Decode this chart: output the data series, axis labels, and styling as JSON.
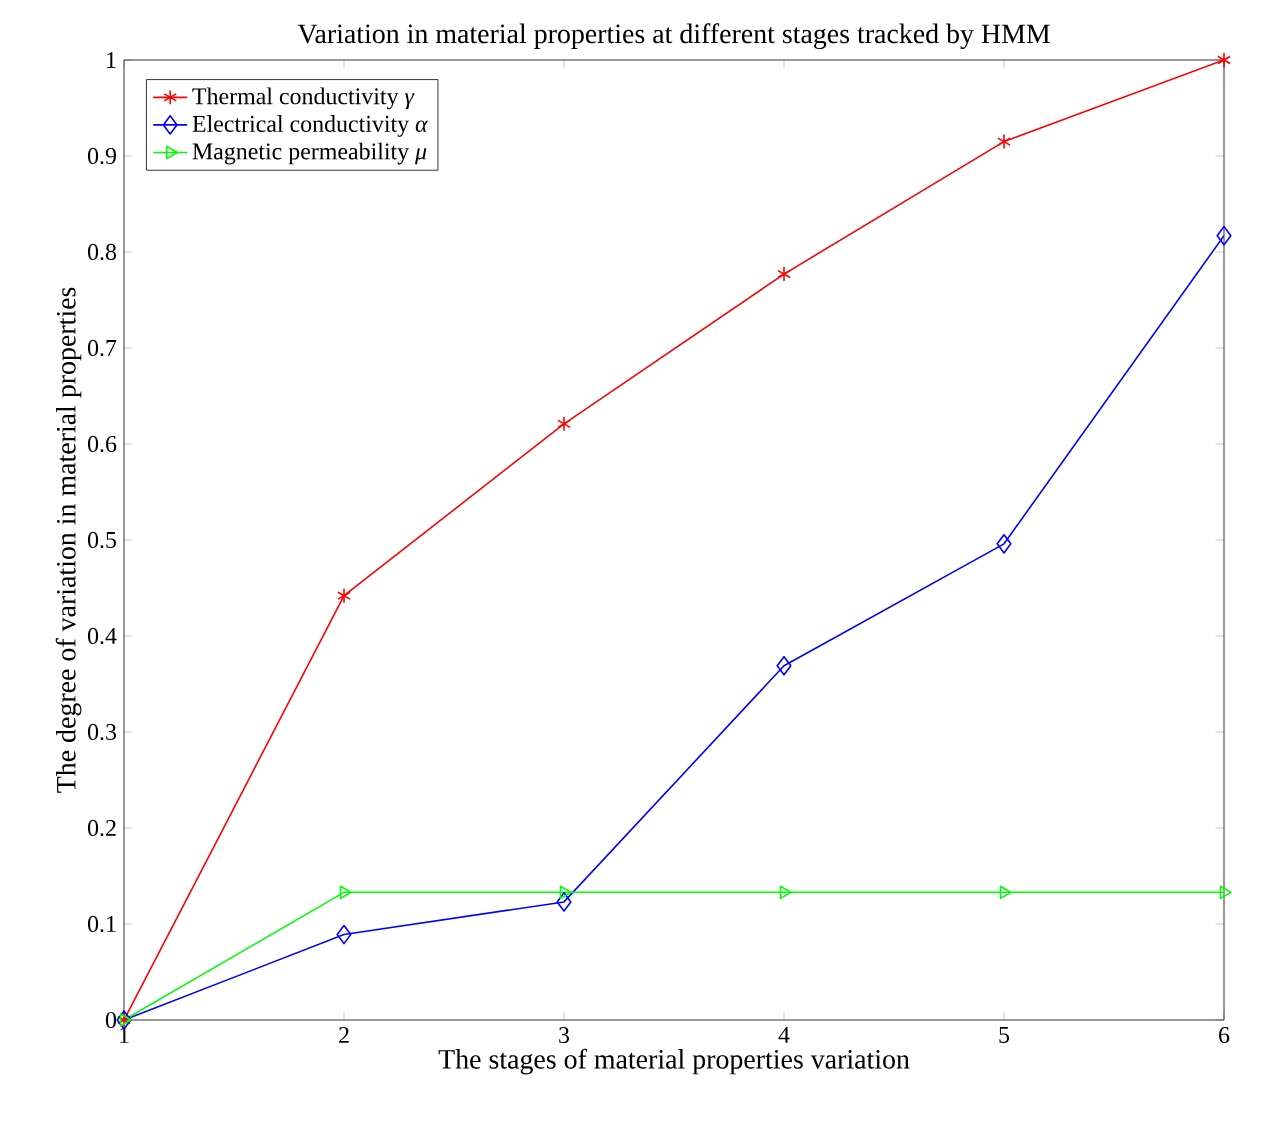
{
  "chart_data": {
    "type": "line",
    "title": "Variation in material properties at different stages tracked by HMM",
    "xlabel": "The stages of material properties variation",
    "ylabel": "The degree of variation in material properties",
    "x": [
      1,
      2,
      3,
      4,
      5,
      6
    ],
    "series": [
      {
        "name": "Thermal conductivity *γ*",
        "color": "#ff0000",
        "marker": "cross",
        "values": [
          0,
          0.442,
          0.621,
          0.777,
          0.915,
          1.0
        ]
      },
      {
        "name": "Electrical conductivity *α*",
        "color": "#0000ff",
        "marker": "diamond",
        "values": [
          0,
          0.089,
          0.123,
          0.369,
          0.496,
          0.817
        ]
      },
      {
        "name": "Magnetic permeability *μ*",
        "color": "#00ff00",
        "marker": "triangle",
        "values": [
          0,
          0.133,
          0.133,
          0.133,
          0.133,
          0.133
        ]
      }
    ],
    "xlim": [
      1,
      6
    ],
    "ylim": [
      0,
      1
    ],
    "xticks": [
      1,
      2,
      3,
      4,
      5,
      6
    ],
    "yticks": [
      0,
      0.1,
      0.2,
      0.3,
      0.4,
      0.5,
      0.6,
      0.7,
      0.8,
      0.9,
      1
    ],
    "legend": "top left",
    "grid": false,
    "line_style": "solid"
  }
}
